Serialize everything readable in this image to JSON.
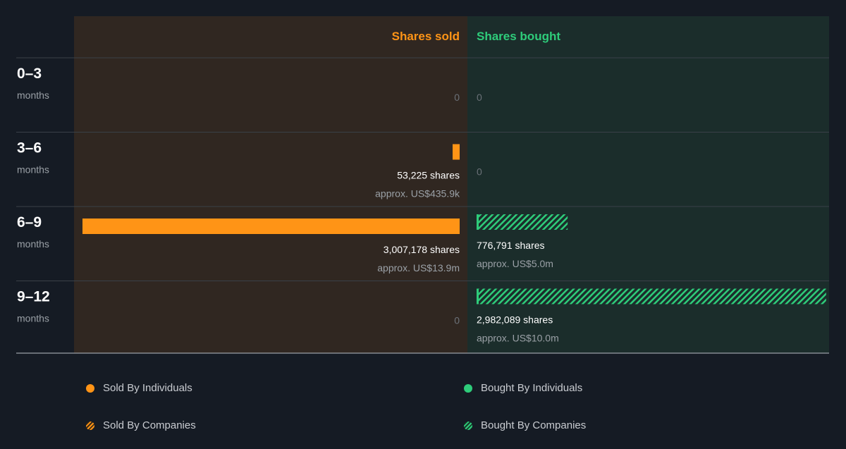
{
  "colors": {
    "background": "#151b24",
    "sold_panel": "#302721",
    "bought_panel": "#1b2d2b",
    "sold": "#ff9416",
    "bought": "#2ecc7a",
    "row_label": "#ffffff",
    "sub_label": "#9aa0a6",
    "zero_label": "#6b7178"
  },
  "chart_data": {
    "type": "bar",
    "headers": {
      "sold": "Shares sold",
      "bought": "Shares bought"
    },
    "max_shares": 3007178,
    "rows": [
      {
        "period": "0–3",
        "unit": "months",
        "sold": {
          "shares": 0,
          "shares_label": "0",
          "approx": ""
        },
        "bought": {
          "shares": 0,
          "shares_label": "0",
          "approx": "",
          "companies": false
        }
      },
      {
        "period": "3–6",
        "unit": "months",
        "sold": {
          "shares": 53225,
          "shares_label": "53,225 shares",
          "approx": "approx. US$435.9k"
        },
        "bought": {
          "shares": 0,
          "shares_label": "0",
          "approx": "",
          "companies": false
        }
      },
      {
        "period": "6–9",
        "unit": "months",
        "sold": {
          "shares": 3007178,
          "shares_label": "3,007,178 shares",
          "approx": "approx. US$13.9m"
        },
        "bought": {
          "shares": 776791,
          "shares_label": "776,791 shares",
          "approx": "approx. US$5.0m",
          "companies": true
        }
      },
      {
        "period": "9–12",
        "unit": "months",
        "sold": {
          "shares": 0,
          "shares_label": "0",
          "approx": ""
        },
        "bought": {
          "shares": 2982089,
          "shares_label": "2,982,089 shares",
          "approx": "approx. US$10.0m",
          "companies": true
        }
      }
    ]
  },
  "legend": {
    "sold_individuals": "Sold By Individuals",
    "sold_companies": "Sold By Companies",
    "bought_individuals": "Bought By Individuals",
    "bought_companies": "Bought By Companies"
  }
}
